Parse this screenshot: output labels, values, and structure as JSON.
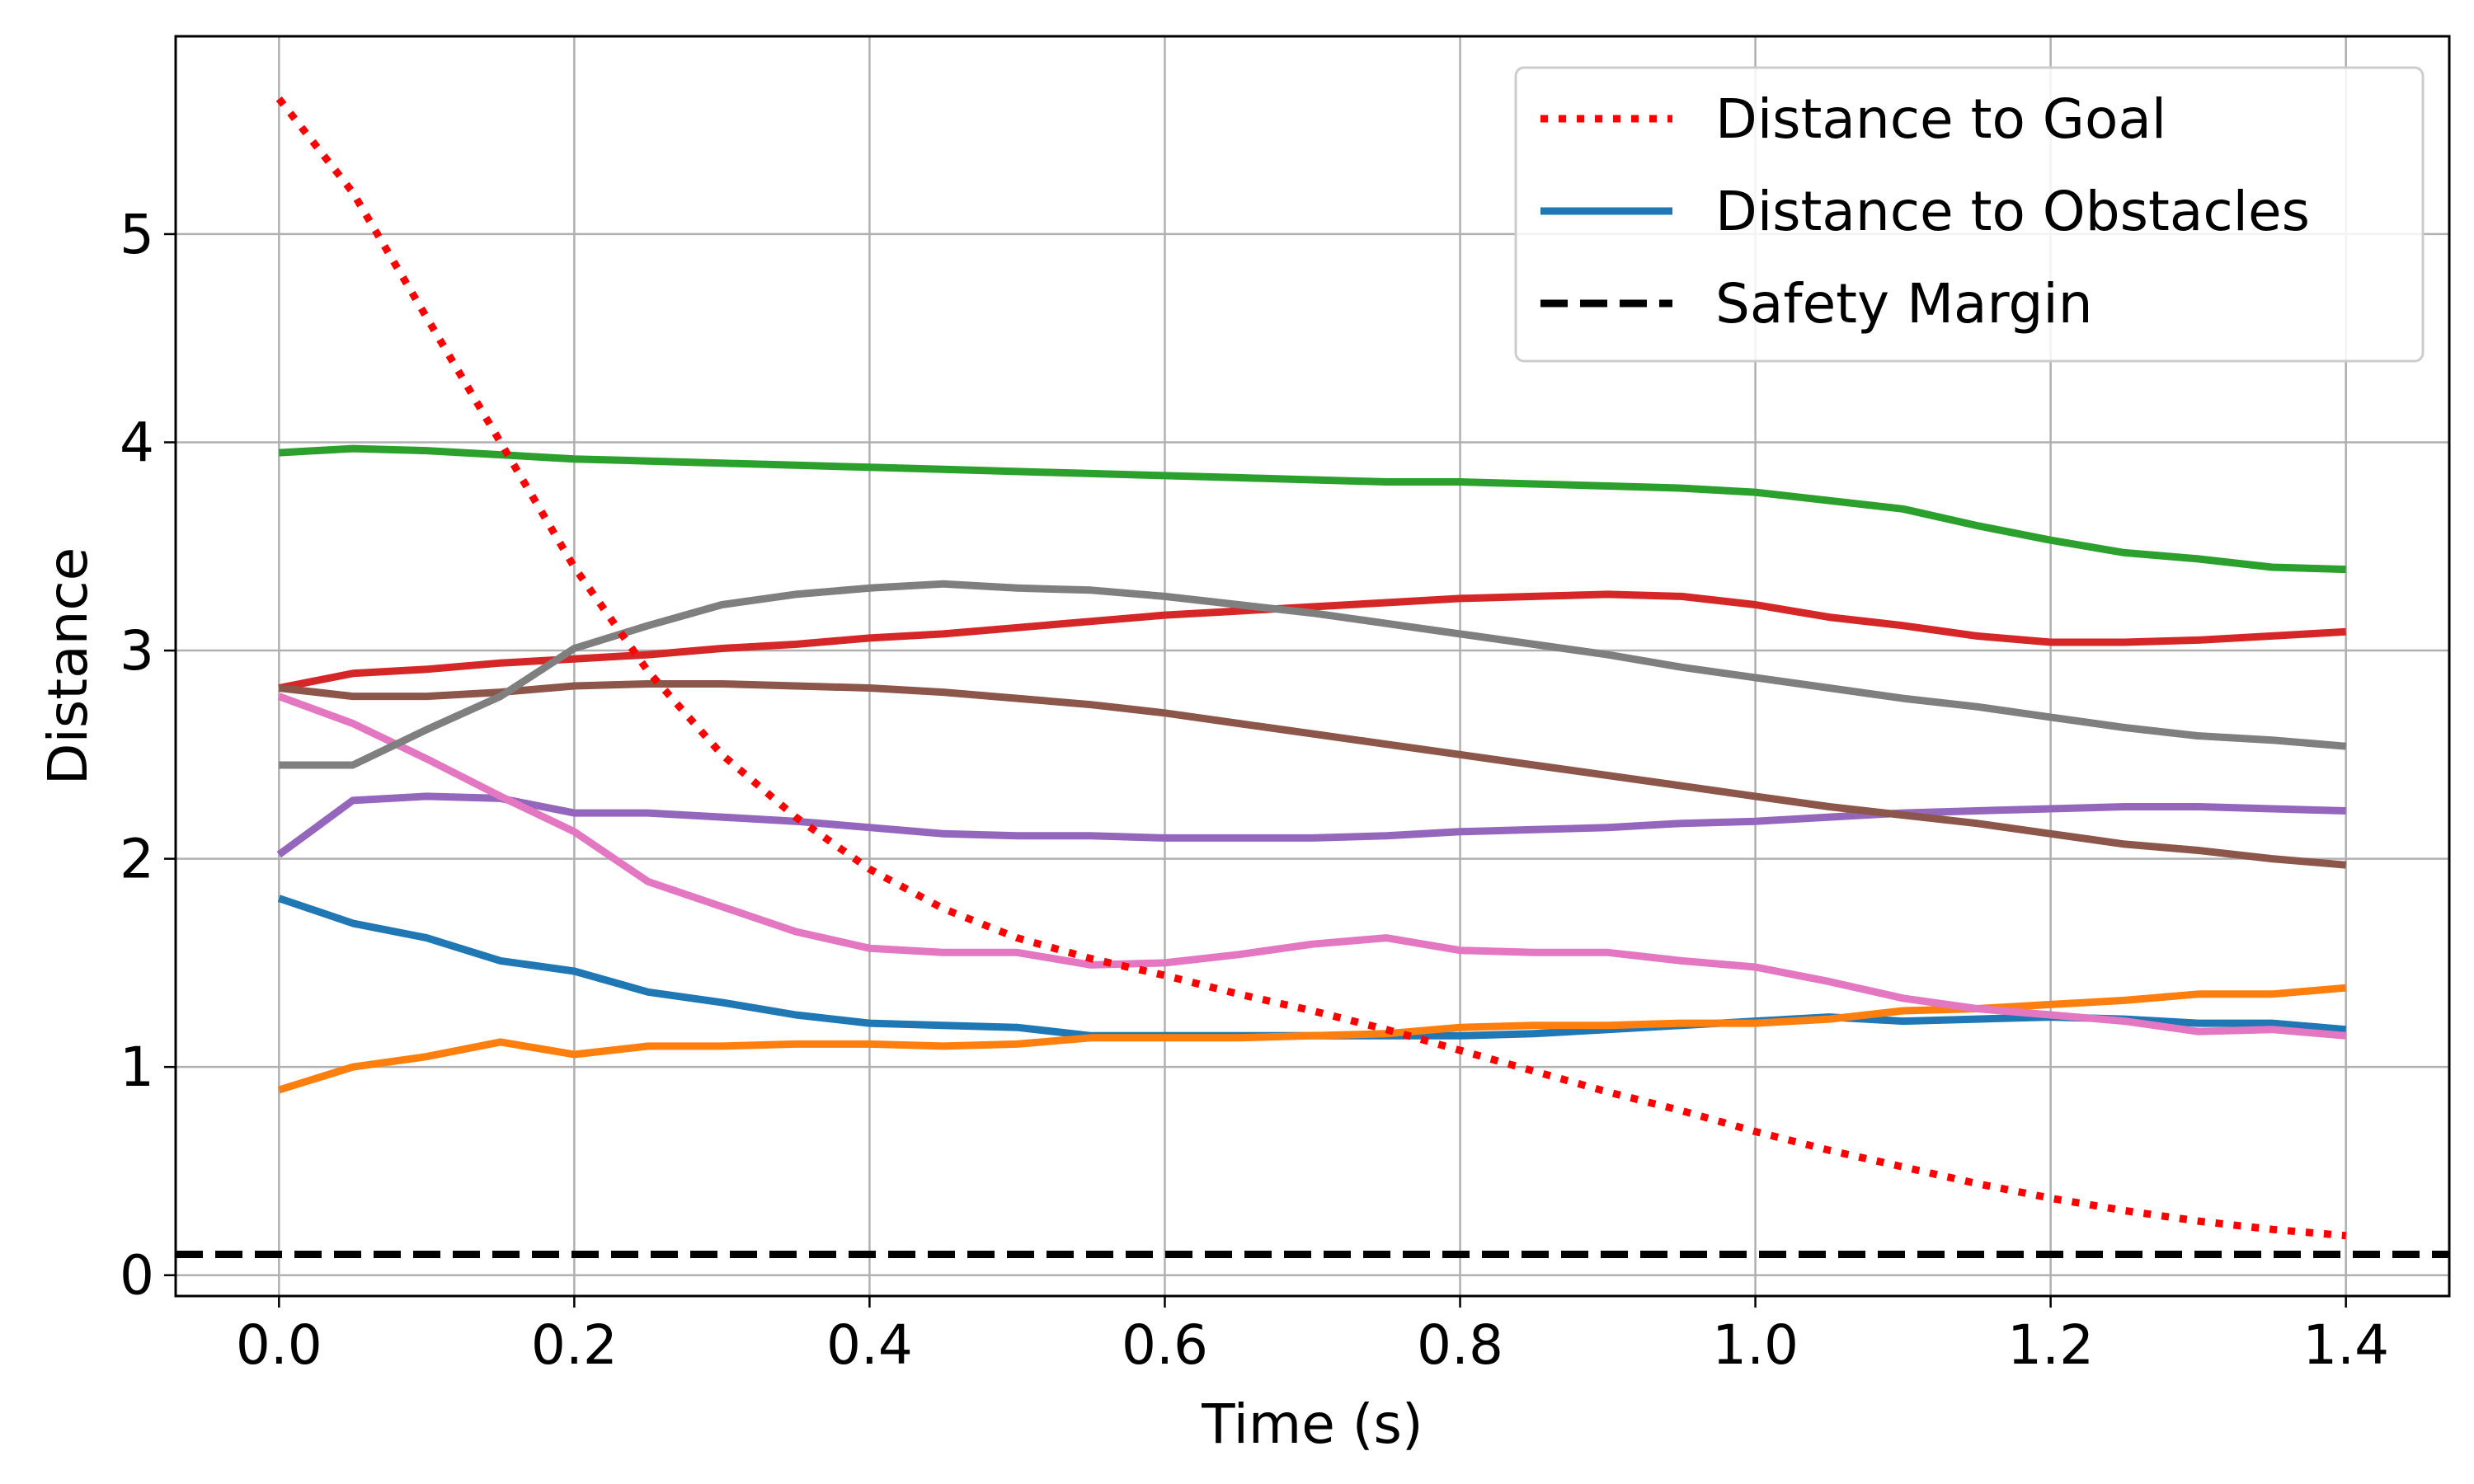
{
  "chart_data": {
    "type": "line",
    "title": "",
    "xlabel": "Time (s)",
    "ylabel": "Distance",
    "xlim": [
      -0.07,
      1.47
    ],
    "ylim": [
      -0.1,
      5.95
    ],
    "xticks": [
      0.0,
      0.2,
      0.4,
      0.6,
      0.8,
      1.0,
      1.2,
      1.4
    ],
    "yticks": [
      0,
      1,
      2,
      3,
      4,
      5
    ],
    "grid": true,
    "legend_position": "top-right",
    "x": [
      0.0,
      0.05,
      0.1,
      0.15,
      0.2,
      0.25,
      0.3,
      0.35,
      0.4,
      0.45,
      0.5,
      0.55,
      0.6,
      0.65,
      0.7,
      0.75,
      0.8,
      0.85,
      0.9,
      0.95,
      1.0,
      1.05,
      1.1,
      1.15,
      1.2,
      1.25,
      1.3,
      1.35,
      1.4
    ],
    "goal": {
      "name": "Distance to Goal",
      "color": "#ff0000",
      "values": [
        5.65,
        5.2,
        4.6,
        4.0,
        3.4,
        2.9,
        2.5,
        2.2,
        1.95,
        1.76,
        1.62,
        1.52,
        1.44,
        1.35,
        1.27,
        1.18,
        1.08,
        0.98,
        0.88,
        0.79,
        0.69,
        0.6,
        0.52,
        0.44,
        0.37,
        0.31,
        0.26,
        0.22,
        0.19
      ]
    },
    "obstacles": [
      {
        "name": "Distance to Obstacles",
        "color": "#1f77b4",
        "values": [
          1.81,
          1.69,
          1.62,
          1.51,
          1.46,
          1.36,
          1.31,
          1.25,
          1.21,
          1.2,
          1.19,
          1.15,
          1.15,
          1.15,
          1.15,
          1.15,
          1.15,
          1.16,
          1.18,
          1.2,
          1.22,
          1.24,
          1.22,
          1.23,
          1.24,
          1.23,
          1.21,
          1.21,
          1.18
        ]
      },
      {
        "name": "",
        "color": "#ff7f0e",
        "values": [
          0.89,
          1.0,
          1.05,
          1.12,
          1.06,
          1.1,
          1.1,
          1.11,
          1.11,
          1.1,
          1.11,
          1.14,
          1.14,
          1.14,
          1.15,
          1.16,
          1.19,
          1.2,
          1.2,
          1.21,
          1.21,
          1.23,
          1.27,
          1.28,
          1.3,
          1.32,
          1.35,
          1.35,
          1.38
        ]
      },
      {
        "name": "",
        "color": "#2ca02c",
        "values": [
          3.95,
          3.97,
          3.96,
          3.94,
          3.92,
          3.91,
          3.9,
          3.89,
          3.88,
          3.87,
          3.86,
          3.85,
          3.84,
          3.83,
          3.82,
          3.81,
          3.81,
          3.8,
          3.79,
          3.78,
          3.76,
          3.72,
          3.68,
          3.6,
          3.53,
          3.47,
          3.44,
          3.4,
          3.39
        ]
      },
      {
        "name": "",
        "color": "#d62728",
        "values": [
          2.82,
          2.89,
          2.91,
          2.94,
          2.96,
          2.98,
          3.01,
          3.03,
          3.06,
          3.08,
          3.11,
          3.14,
          3.17,
          3.19,
          3.21,
          3.23,
          3.25,
          3.26,
          3.27,
          3.26,
          3.22,
          3.16,
          3.12,
          3.07,
          3.04,
          3.04,
          3.05,
          3.07,
          3.09
        ]
      },
      {
        "name": "",
        "color": "#9467bd",
        "values": [
          2.02,
          2.28,
          2.3,
          2.29,
          2.22,
          2.22,
          2.2,
          2.18,
          2.15,
          2.12,
          2.11,
          2.11,
          2.1,
          2.1,
          2.1,
          2.11,
          2.13,
          2.14,
          2.15,
          2.17,
          2.18,
          2.2,
          2.22,
          2.23,
          2.24,
          2.25,
          2.25,
          2.24,
          2.23
        ]
      },
      {
        "name": "",
        "color": "#8c564b",
        "values": [
          2.82,
          2.78,
          2.78,
          2.8,
          2.83,
          2.84,
          2.84,
          2.83,
          2.82,
          2.8,
          2.77,
          2.74,
          2.7,
          2.65,
          2.6,
          2.55,
          2.5,
          2.45,
          2.4,
          2.35,
          2.3,
          2.25,
          2.21,
          2.17,
          2.12,
          2.07,
          2.04,
          2.0,
          1.97
        ]
      },
      {
        "name": "",
        "color": "#e377c2",
        "values": [
          2.78,
          2.65,
          2.48,
          2.3,
          2.13,
          1.89,
          1.77,
          1.65,
          1.57,
          1.55,
          1.55,
          1.49,
          1.5,
          1.54,
          1.59,
          1.62,
          1.56,
          1.55,
          1.55,
          1.51,
          1.48,
          1.41,
          1.33,
          1.28,
          1.25,
          1.22,
          1.17,
          1.18,
          1.15
        ]
      },
      {
        "name": "",
        "color": "#7f7f7f",
        "values": [
          2.45,
          2.45,
          2.62,
          2.78,
          3.01,
          3.12,
          3.22,
          3.27,
          3.3,
          3.32,
          3.3,
          3.29,
          3.26,
          3.22,
          3.18,
          3.13,
          3.08,
          3.03,
          2.98,
          2.92,
          2.87,
          2.82,
          2.77,
          2.73,
          2.68,
          2.63,
          2.59,
          2.57,
          2.54
        ]
      }
    ],
    "safety_margin": {
      "name": "Safety Margin",
      "color": "#000000",
      "value": 0.1
    }
  }
}
